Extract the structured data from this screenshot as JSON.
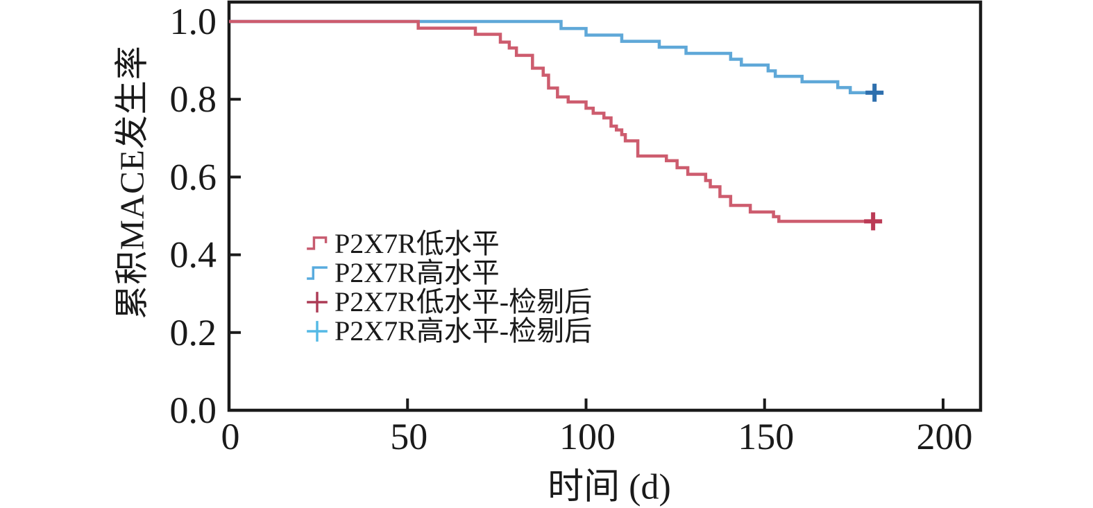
{
  "chart_data": {
    "type": "line",
    "variant": "kaplan_meier_step_curves",
    "title": "",
    "xlabel": "时间 (d)",
    "ylabel": "累积MACE发生率",
    "xlim": [
      0,
      210.5
    ],
    "ylim": [
      0,
      1.05
    ],
    "grid": false,
    "axis_color": "#1a1a1a",
    "legend_position": "inside lower-left",
    "xticks": [
      {
        "value": 0,
        "label": "0"
      },
      {
        "value": 50,
        "label": "50"
      },
      {
        "value": 100,
        "label": "100"
      },
      {
        "value": 150,
        "label": "150"
      },
      {
        "value": 200,
        "label": "200"
      }
    ],
    "yticks": [
      {
        "value": 0.0,
        "label": "0.0"
      },
      {
        "value": 0.2,
        "label": "0.2"
      },
      {
        "value": 0.4,
        "label": "0.4"
      },
      {
        "value": 0.6,
        "label": "0.6"
      },
      {
        "value": 0.8,
        "label": "0.8"
      },
      {
        "value": 1.0,
        "label": "1.0"
      }
    ],
    "series": [
      {
        "name": "P2X7R低水平",
        "color": "#CD5C6E",
        "censor_color": "#BB3A55",
        "end_x": 180.7,
        "censored": [
          [
            180.4,
            0.486
          ]
        ],
        "steps": [
          [
            0,
            1.0
          ],
          [
            53,
            0.983
          ],
          [
            69,
            0.967
          ],
          [
            76,
            0.947
          ],
          [
            78.5,
            0.932
          ],
          [
            80.5,
            0.913
          ],
          [
            85,
            0.88
          ],
          [
            88,
            0.862
          ],
          [
            89.5,
            0.829
          ],
          [
            92,
            0.806
          ],
          [
            95,
            0.793
          ],
          [
            100,
            0.777
          ],
          [
            102,
            0.764
          ],
          [
            105,
            0.752
          ],
          [
            107,
            0.731
          ],
          [
            108.5,
            0.721
          ],
          [
            110,
            0.709
          ],
          [
            111,
            0.693
          ],
          [
            114.5,
            0.654
          ],
          [
            122.5,
            0.642
          ],
          [
            125.5,
            0.624
          ],
          [
            128.5,
            0.607
          ],
          [
            133.5,
            0.591
          ],
          [
            134.8,
            0.575
          ],
          [
            137.5,
            0.55
          ],
          [
            140.5,
            0.527
          ],
          [
            146,
            0.51
          ],
          [
            152.5,
            0.498
          ],
          [
            154,
            0.486
          ]
        ]
      },
      {
        "name": "P2X7R高水平",
        "color": "#5FA8D8",
        "censor_color": "#2E6FAD",
        "end_x": 181.3,
        "censored": [
          [
            180.8,
            0.817
          ]
        ],
        "steps": [
          [
            0,
            1.0
          ],
          [
            93,
            0.982
          ],
          [
            100,
            0.965
          ],
          [
            110,
            0.949
          ],
          [
            120.5,
            0.934
          ],
          [
            128,
            0.918
          ],
          [
            140.5,
            0.903
          ],
          [
            143.5,
            0.888
          ],
          [
            151,
            0.873
          ],
          [
            153,
            0.859
          ],
          [
            160.5,
            0.845
          ],
          [
            170.5,
            0.83
          ],
          [
            174,
            0.817
          ]
        ]
      }
    ],
    "legend": {
      "entries": [
        {
          "label": "P2X7R低水平",
          "marker": "step-a",
          "color": "#C75B6F"
        },
        {
          "label": "P2X7R高水平",
          "marker": "step-b",
          "color": "#58ABDE"
        },
        {
          "label": "P2X7R低水平-检剔后",
          "marker": "plus",
          "color": "#AC3B55"
        },
        {
          "label": "P2X7R高水平-检剔后",
          "marker": "plus",
          "color": "#54B9E5"
        }
      ]
    }
  }
}
